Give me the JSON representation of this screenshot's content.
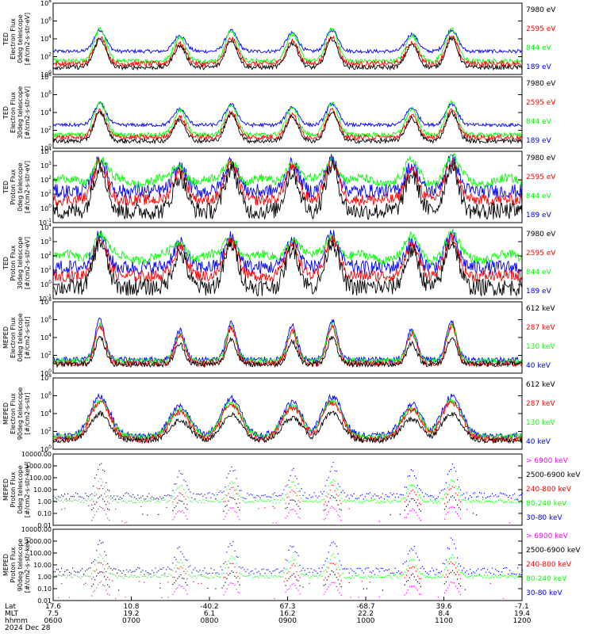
{
  "chart_data": [
    {
      "type": "line",
      "panel": 1,
      "ylabel_lines": [
        "TED",
        "Electron Flux",
        "0deg telescope",
        "[#/cm2-s-str-eV]"
      ],
      "yscale": "log",
      "ylim_exp": [
        0,
        8
      ],
      "yticks": [
        "10^0",
        "10^2",
        "10^4",
        "10^6",
        "10^8"
      ],
      "legend": [
        {
          "label": "7980 eV",
          "color": "#000000"
        },
        {
          "label": "2595 eV",
          "color": "#ff0000"
        },
        {
          "label": "844 eV",
          "color": "#00ff00"
        },
        {
          "label": "189 eV",
          "color": "#0000ff"
        }
      ],
      "series_log10_ranges": [
        {
          "name": "189 eV",
          "base": [
            2.5,
            3.3
          ],
          "peak": 5.0
        },
        {
          "name": "844 eV",
          "base": [
            1.2,
            2.0
          ],
          "peak": 5.2
        },
        {
          "name": "2595 eV",
          "base": [
            1.0,
            1.6
          ],
          "peak": 4.2
        },
        {
          "name": "7980 eV",
          "base": [
            0.8,
            1.4
          ],
          "peak": 3.4
        }
      ]
    },
    {
      "type": "line",
      "panel": 2,
      "ylabel_lines": [
        "TED",
        "Electron Flux",
        "30deg telescope",
        "[#/cm2-s-str-eV]"
      ],
      "yscale": "log",
      "ylim_exp": [
        0,
        8
      ],
      "yticks": [
        "10^0",
        "10^2",
        "10^4",
        "10^6",
        "10^8"
      ],
      "legend": [
        {
          "label": "7980 eV",
          "color": "#000000"
        },
        {
          "label": "2595 eV",
          "color": "#ff0000"
        },
        {
          "label": "844 eV",
          "color": "#00ff00"
        },
        {
          "label": "189 eV",
          "color": "#0000ff"
        }
      ]
    },
    {
      "type": "line",
      "panel": 3,
      "ylabel_lines": [
        "TED",
        "Proton Flux",
        "0deg telescope",
        "[#/cm2-s-str-eV]"
      ],
      "yscale": "log",
      "ylim_exp": [
        -1,
        4
      ],
      "yticks": [
        "10^-1",
        "10^0",
        "10^1",
        "10^2",
        "10^3",
        "10^4"
      ],
      "legend": [
        {
          "label": "7980 eV",
          "color": "#000000"
        },
        {
          "label": "2595 eV",
          "color": "#ff0000"
        },
        {
          "label": "844 eV",
          "color": "#00ff00"
        },
        {
          "label": "189 eV",
          "color": "#0000ff"
        }
      ]
    },
    {
      "type": "line",
      "panel": 4,
      "ylabel_lines": [
        "TED",
        "Proton Flux",
        "30deg telescope",
        "[#/cm2-s-str-eV]"
      ],
      "yscale": "log",
      "ylim_exp": [
        -1,
        4
      ],
      "yticks": [
        "10^-1",
        "10^0",
        "10^1",
        "10^2",
        "10^3",
        "10^4"
      ],
      "legend": [
        {
          "label": "7980 eV",
          "color": "#000000"
        },
        {
          "label": "2595 eV",
          "color": "#ff0000"
        },
        {
          "label": "844 eV",
          "color": "#00ff00"
        },
        {
          "label": "189 eV",
          "color": "#0000ff"
        }
      ]
    },
    {
      "type": "line",
      "panel": 5,
      "ylabel_lines": [
        "MEPED",
        "Electron Flux",
        "0deg telescope",
        "[#/cm2-s-str]"
      ],
      "yscale": "log",
      "ylim_exp": [
        0,
        8
      ],
      "yticks": [
        "10^0",
        "10^2",
        "10^4",
        "10^6",
        "10^8"
      ],
      "legend": [
        {
          "label": "612 keV",
          "color": "#000000"
        },
        {
          "label": "287 keV",
          "color": "#ff0000"
        },
        {
          "label": "130 keV",
          "color": "#00ff00"
        },
        {
          "label": "40 keV",
          "color": "#0000ff"
        }
      ]
    },
    {
      "type": "line",
      "panel": 6,
      "ylabel_lines": [
        "MEPED",
        "Electron Flux",
        "90deg telescope",
        "[#/cm2-s-str]"
      ],
      "yscale": "log",
      "ylim_exp": [
        0,
        8
      ],
      "yticks": [
        "10^0",
        "10^2",
        "10^4",
        "10^6",
        "10^8"
      ],
      "legend": [
        {
          "label": "612 keV",
          "color": "#000000"
        },
        {
          "label": "287 keV",
          "color": "#ff0000"
        },
        {
          "label": "130 keV",
          "color": "#00ff00"
        },
        {
          "label": "40 keV",
          "color": "#0000ff"
        }
      ]
    },
    {
      "type": "scatter",
      "panel": 7,
      "ylabel_lines": [
        "MEPED",
        "Proton Flux",
        "0deg telescope",
        "[#/cm2-s-str-keV]"
      ],
      "yscale": "log",
      "ylim_exp": [
        -2,
        4
      ],
      "yticks": [
        "0.01",
        "0.10",
        "1.00",
        "10.00",
        "100.00",
        "1000.00",
        "10000.00"
      ],
      "legend": [
        {
          "label": "> 6900 keV",
          "color": "#ff00ff"
        },
        {
          "label": "2500-6900 keV",
          "color": "#000000"
        },
        {
          "label": "240-800 keV",
          "color": "#ff0000"
        },
        {
          "label": "80-240 keV",
          "color": "#00ff00"
        },
        {
          "label": "30-80 keV",
          "color": "#0000ff"
        }
      ]
    },
    {
      "type": "scatter",
      "panel": 8,
      "ylabel_lines": [
        "MEPED",
        "Proton Flux",
        "90deg telescope",
        "[#/cm2-s-str-keV]"
      ],
      "yscale": "log",
      "ylim_exp": [
        -2,
        4
      ],
      "yticks": [
        "0.01",
        "0.10",
        "1.00",
        "10.00",
        "100.00",
        "1000.00",
        "10000.00"
      ],
      "legend": [
        {
          "label": "> 6900 keV",
          "color": "#ff00ff"
        },
        {
          "label": "2500-6900 keV",
          "color": "#000000"
        },
        {
          "label": "240-800 keV",
          "color": "#ff0000"
        },
        {
          "label": "80-240 keV",
          "color": "#00ff00"
        },
        {
          "label": "30-80 keV",
          "color": "#0000ff"
        }
      ]
    }
  ],
  "x_axis": {
    "row_labels": [
      "Lat",
      "MLT",
      "hhmm"
    ],
    "date": "2024 Dec 28",
    "ticks": [
      {
        "lat": "17.6",
        "mlt": "7.5",
        "hhmm": "0600"
      },
      {
        "lat": "10.8",
        "mlt": "19.2",
        "hhmm": "0700"
      },
      {
        "lat": "-40.2",
        "mlt": "6.1",
        "hhmm": "0800"
      },
      {
        "lat": "67.3",
        "mlt": "16.2",
        "hhmm": "0900"
      },
      {
        "lat": "-68.7",
        "mlt": "22.2",
        "hhmm": "1000"
      },
      {
        "lat": "39.6",
        "mlt": "8.4",
        "hhmm": "1100"
      },
      {
        "lat": "-7.1",
        "mlt": "19.4",
        "hhmm": "1200"
      }
    ]
  },
  "passes": [
    {
      "t": 0.1,
      "strength": 1.0
    },
    {
      "t": 0.27,
      "strength": 0.75
    },
    {
      "t": 0.38,
      "strength": 0.95
    },
    {
      "t": 0.51,
      "strength": 0.85
    },
    {
      "t": 0.595,
      "strength": 1.0
    },
    {
      "t": 0.765,
      "strength": 0.8
    },
    {
      "t": 0.85,
      "strength": 1.0
    }
  ],
  "colors": {
    "black": "#000000",
    "red": "#ff0000",
    "green": "#00ff00",
    "blue": "#0000ff",
    "magenta": "#ff00ff"
  }
}
